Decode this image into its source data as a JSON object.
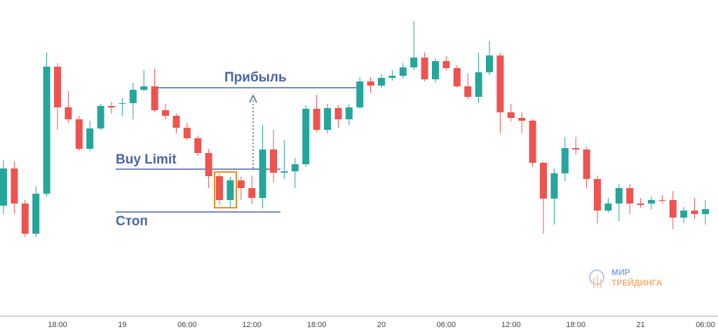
{
  "chart_data": {
    "type": "candlestick",
    "categories": [
      null,
      null,
      null,
      null,
      null,
      "18:00",
      null,
      null,
      null,
      null,
      null,
      "19",
      null,
      null,
      null,
      null,
      null,
      "06:00",
      null,
      null,
      null,
      null,
      null,
      "12:00",
      null,
      null,
      null,
      null,
      null,
      "18:00",
      null,
      null,
      null,
      null,
      null,
      "20",
      null,
      null,
      null,
      null,
      null,
      "06:00",
      null,
      null,
      null,
      null,
      null,
      "12:00",
      null,
      null,
      null,
      null,
      null,
      "18:00",
      null,
      null,
      null,
      null,
      null,
      "21",
      null,
      null,
      null,
      null,
      null,
      "06:00"
    ],
    "open": [
      180,
      233,
      183,
      140,
      197,
      378,
      320,
      303,
      261,
      290,
      322,
      325,
      326,
      345,
      350,
      316,
      308,
      291,
      276,
      255,
      222,
      188,
      216,
      205,
      191,
      260,
      227,
      229,
      239,
      318,
      288,
      319,
      303,
      320,
      357,
      351,
      362,
      365,
      377,
      391,
      360,
      386,
      376,
      350,
      335,
      370,
      394,
      313,
      305,
      301,
      241,
      190,
      226,
      262,
      260,
      218,
      173,
      183,
      205,
      183,
      183,
      188,
      188,
      163,
      173,
      168
    ],
    "high": [
      245,
      243,
      188,
      208,
      398,
      383,
      343,
      308,
      301,
      325,
      328,
      333,
      355,
      373,
      375,
      325,
      311,
      298,
      280,
      261,
      225,
      221,
      221,
      223,
      295,
      288,
      273,
      248,
      323,
      338,
      325,
      323,
      325,
      363,
      363,
      368,
      373,
      383,
      443,
      398,
      390,
      393,
      380,
      368,
      398,
      415,
      398,
      325,
      313,
      303,
      243,
      233,
      278,
      278,
      263,
      223,
      191,
      211,
      211,
      191,
      193,
      195,
      201,
      178,
      191,
      188
    ],
    "low": [
      168,
      168,
      135,
      135,
      193,
      288,
      298,
      258,
      258,
      288,
      311,
      308,
      303,
      343,
      313,
      303,
      283,
      273,
      251,
      205,
      181,
      177,
      188,
      183,
      176,
      213,
      218,
      205,
      235,
      285,
      283,
      291,
      295,
      318,
      341,
      348,
      358,
      361,
      373,
      357,
      355,
      373,
      348,
      331,
      327,
      366,
      283,
      300,
      283,
      235,
      140,
      153,
      215,
      253,
      205,
      155,
      170,
      158,
      168,
      177,
      175,
      183,
      147,
      155,
      161,
      153
    ],
    "close": [
      233,
      183,
      140,
      197,
      378,
      320,
      303,
      261,
      290,
      322,
      320,
      326,
      345,
      350,
      316,
      308,
      291,
      276,
      255,
      222,
      188,
      216,
      205,
      191,
      260,
      227,
      229,
      239,
      318,
      288,
      319,
      303,
      320,
      357,
      351,
      362,
      365,
      377,
      391,
      360,
      386,
      376,
      350,
      335,
      370,
      394,
      313,
      305,
      301,
      241,
      190,
      226,
      262,
      260,
      218,
      173,
      183,
      205,
      183,
      181,
      188,
      187,
      163,
      173,
      168,
      175
    ],
    "ylim": [
      0,
      473
    ],
    "up_color": "#26a69a",
    "down_color": "#ef5350",
    "annotations": [
      {
        "label": "Прибыль",
        "value": 348
      },
      {
        "label": "Buy Limit",
        "value": 232
      },
      {
        "label": "Стоп",
        "value": 171
      }
    ],
    "watermark": [
      "МИР",
      "ТРЕЙДИНГА"
    ]
  }
}
